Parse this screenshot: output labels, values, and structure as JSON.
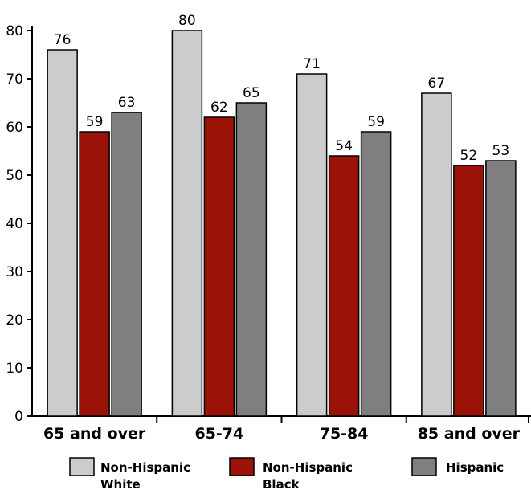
{
  "chart_data": {
    "type": "bar",
    "title": "",
    "xlabel": "",
    "ylabel": "",
    "ylim": [
      0,
      80
    ],
    "yticks": [
      0,
      10,
      20,
      30,
      40,
      50,
      60,
      70,
      80
    ],
    "grid": false,
    "legend_position": "bottom",
    "categories": [
      "65 and over",
      "65-74",
      "75-84",
      "85 and over"
    ],
    "series": [
      {
        "name": "Non-Hispanic White",
        "legend_lines": [
          "Non-Hispanic",
          "White"
        ],
        "color": "#cccccc",
        "values": [
          76,
          80,
          71,
          67
        ]
      },
      {
        "name": "Non-Hispanic Black",
        "legend_lines": [
          "Non-Hispanic",
          "Black"
        ],
        "color": "#9b1209",
        "values": [
          59,
          62,
          54,
          52
        ]
      },
      {
        "name": "Hispanic",
        "legend_lines": [
          "Hispanic"
        ],
        "color": "#7f7f7f",
        "values": [
          63,
          65,
          59,
          53
        ]
      }
    ]
  }
}
